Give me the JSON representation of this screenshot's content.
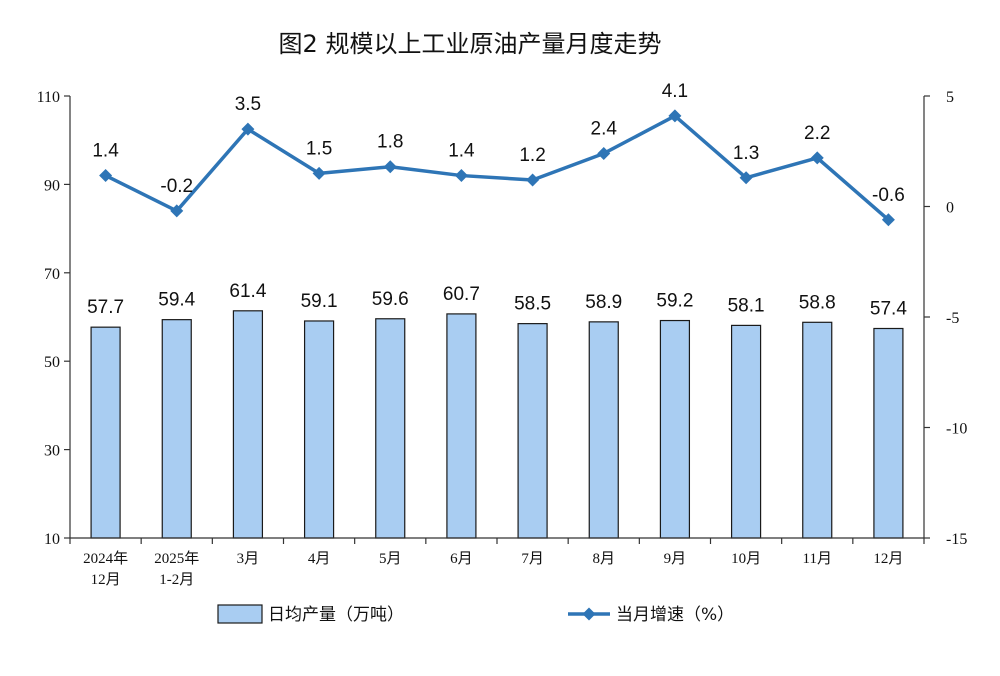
{
  "colors": {
    "bar_fill": "#a9cdf2",
    "bar_stroke": "#1a1a1a",
    "line": "#2e75b6",
    "axis": "#333333"
  },
  "chart_data": {
    "type": "bar",
    "title": "图2  规模以上工业原油产量月度走势",
    "categories": [
      [
        "2024年",
        "12月"
      ],
      [
        "2025年",
        "1-2月"
      ],
      [
        "3月"
      ],
      [
        "4月"
      ],
      [
        "5月"
      ],
      [
        "6月"
      ],
      [
        "7月"
      ],
      [
        "8月"
      ],
      [
        "9月"
      ],
      [
        "10月"
      ],
      [
        "11月"
      ],
      [
        "12月"
      ]
    ],
    "series": [
      {
        "name": "日均产量（万吨）",
        "type": "bar",
        "axis": "left",
        "values": [
          57.7,
          59.4,
          61.4,
          59.1,
          59.6,
          60.7,
          58.5,
          58.9,
          59.2,
          58.1,
          58.8,
          57.4
        ]
      },
      {
        "name": "当月增速（%）",
        "type": "line",
        "axis": "right",
        "marker": "diamond",
        "values": [
          1.4,
          -0.2,
          3.5,
          1.5,
          1.8,
          1.4,
          1.2,
          2.4,
          4.1,
          1.3,
          2.2,
          -0.6
        ]
      }
    ],
    "y_left": {
      "min": 10,
      "max": 110,
      "ticks": [
        10,
        30,
        50,
        70,
        90,
        110
      ]
    },
    "y_right": {
      "min": -15,
      "max": 5,
      "ticks": [
        -15,
        -10,
        -5,
        0,
        5
      ]
    },
    "legend_position": "bottom",
    "grid": false
  }
}
